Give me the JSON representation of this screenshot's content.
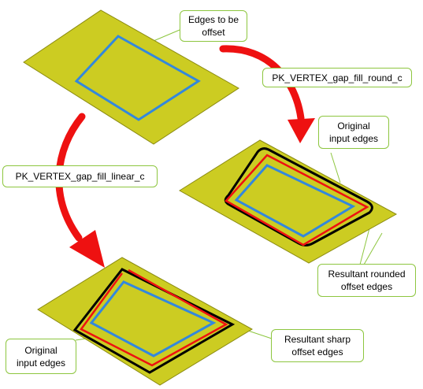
{
  "labels": {
    "edges_to_offset": [
      "Edges to be",
      "offset"
    ],
    "round_method": "PK_VERTEX_gap_fill_round_c",
    "linear_method": "PK_VERTEX_gap_fill_linear_c",
    "original_top_right": [
      "Original",
      "input edges"
    ],
    "resultant_rounded": [
      "Resultant rounded",
      "offset edges"
    ],
    "resultant_sharp": [
      "Resultant sharp",
      "offset edges"
    ],
    "original_bottom_left": [
      "Original",
      "input edges"
    ]
  },
  "colors": {
    "sheet_fill": "#cccc22",
    "sheet_edge": "#8a8a10",
    "input_edges": "#3388dd",
    "offset_edges": "#ee1111",
    "gap_fill": "#000000",
    "arrow": "#ee1111",
    "callout_border": "#8dc63f"
  }
}
